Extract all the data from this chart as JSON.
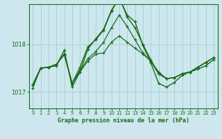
{
  "title": "Graphe pression niveau de la mer (hPa)",
  "bg_color": "#cce8ee",
  "grid_color": "#aacccc",
  "line_color": "#1a6b1a",
  "xlim": [
    -0.5,
    23.5
  ],
  "ylim": [
    1016.65,
    1018.85
  ],
  "yticks": [
    1017,
    1018
  ],
  "xticks": [
    0,
    1,
    2,
    3,
    4,
    5,
    6,
    7,
    8,
    9,
    10,
    11,
    12,
    13,
    14,
    15,
    16,
    17,
    18,
    19,
    20,
    21,
    22,
    23
  ],
  "series": [
    [
      1017.15,
      1017.5,
      1017.52,
      1017.58,
      1017.8,
      1017.18,
      1017.52,
      1017.95,
      1018.1,
      1018.3,
      1018.7,
      1019.0,
      1018.58,
      1018.35,
      1018.0,
      1017.68,
      1017.38,
      1017.28,
      1017.3,
      1017.38,
      1017.42,
      1017.48,
      1017.55,
      1017.68
    ],
    [
      1017.15,
      1017.5,
      1017.52,
      1017.58,
      1017.8,
      1017.18,
      1017.45,
      1017.7,
      1017.85,
      1018.05,
      1018.35,
      1018.62,
      1018.38,
      1018.1,
      1017.82,
      1017.65,
      1017.38,
      1017.28,
      1017.3,
      1017.38,
      1017.42,
      1017.52,
      1017.62,
      1017.72
    ],
    [
      1017.15,
      1017.5,
      1017.52,
      1017.58,
      1017.78,
      1017.18,
      1017.42,
      1017.65,
      1017.8,
      1017.82,
      1018.05,
      1018.18,
      1018.05,
      1017.92,
      1017.8,
      1017.65,
      1017.42,
      1017.28,
      1017.3,
      1017.38,
      1017.42,
      1017.52,
      1017.62,
      1017.72
    ],
    [
      1017.08,
      1017.5,
      1017.52,
      1017.55,
      1017.88,
      1017.1,
      1017.42,
      1017.9,
      1018.12,
      1018.32,
      1018.72,
      1018.98,
      1018.62,
      1018.48,
      1017.98,
      1017.62,
      1017.18,
      1017.1,
      1017.2,
      1017.35,
      1017.42,
      1017.52,
      1017.62,
      1017.72
    ]
  ]
}
